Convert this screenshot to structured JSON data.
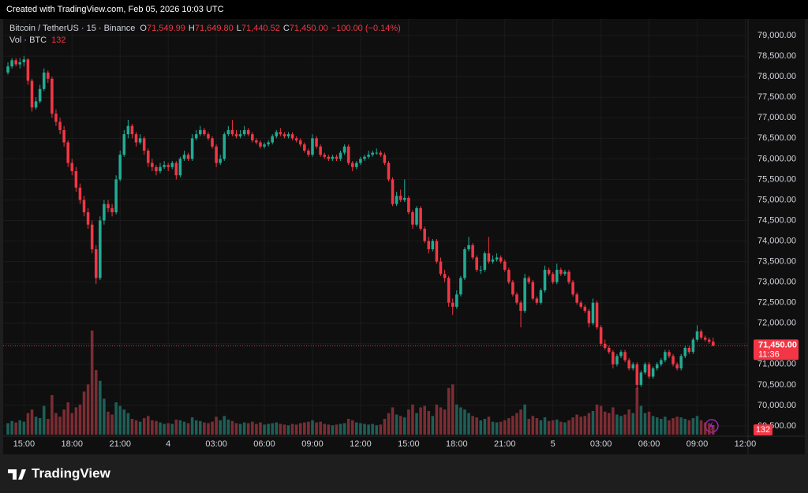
{
  "watermark": "Created with TradingView.com, Feb 05, 2026 10:03 UTC",
  "footer_brand": "TradingView",
  "chart_data": {
    "type": "candlestick",
    "legend": {
      "symbol": "Bitcoin / TetherUS · 15 · Binance",
      "fields": [
        {
          "key": "O",
          "label": "71,549.99"
        },
        {
          "key": "H",
          "label": "71,649.80"
        },
        {
          "key": "L",
          "label": "71,440.52"
        },
        {
          "key": "C",
          "label": "71,450.00"
        }
      ],
      "change": "−100.00 (−0.14%)",
      "volume_title": "Vol · BTC"
    },
    "up_color": "#22ab94",
    "down_color": "#f23645",
    "up_volume_color": "#1d5f57",
    "down_volume_color": "#7c2c33",
    "last_price_label": "71,450.00",
    "countdown": "11:36",
    "grid": true,
    "xlim": [
      -0.4,
      184.7
    ],
    "ylim": [
      69250,
      79290
    ],
    "volume_ylim": [
      0,
      6000
    ],
    "xticks": [
      {
        "value": 4,
        "label": "15:00"
      },
      {
        "value": 16,
        "label": "18:00"
      },
      {
        "value": 28,
        "label": "21:00"
      },
      {
        "value": 40,
        "label": "4"
      },
      {
        "value": 52,
        "label": "03:00"
      },
      {
        "value": 64,
        "label": "06:00"
      },
      {
        "value": 76,
        "label": "09:00"
      },
      {
        "value": 88,
        "label": "12:00"
      },
      {
        "value": 100,
        "label": "15:00"
      },
      {
        "value": 112,
        "label": "18:00"
      },
      {
        "value": 124,
        "label": "21:00"
      },
      {
        "value": 136,
        "label": "5"
      },
      {
        "value": 148,
        "label": "03:00"
      },
      {
        "value": 160,
        "label": "06:00"
      },
      {
        "value": 172,
        "label": "09:00"
      },
      {
        "value": 184,
        "label": "12:00"
      }
    ],
    "yticks": [
      {
        "value": 69500,
        "label": "69,500.00"
      },
      {
        "value": 70000,
        "label": "70,000.00"
      },
      {
        "value": 70500,
        "label": "70,500.00"
      },
      {
        "value": 71000,
        "label": "71,000.00"
      },
      {
        "value": 71500,
        "label": "71,500.00"
      },
      {
        "value": 72000,
        "label": "72,000.00"
      },
      {
        "value": 72500,
        "label": "72,500.00"
      },
      {
        "value": 73000,
        "label": "73,000.00"
      },
      {
        "value": 73500,
        "label": "73,500.00"
      },
      {
        "value": 74000,
        "label": "74,000.00"
      },
      {
        "value": 74500,
        "label": "74,500.00"
      },
      {
        "value": 75000,
        "label": "75,000.00"
      },
      {
        "value": 75500,
        "label": "75,500.00"
      },
      {
        "value": 76000,
        "label": "76,000.00"
      },
      {
        "value": 76500,
        "label": "76,500.00"
      },
      {
        "value": 77000,
        "label": "77,000.00"
      },
      {
        "value": 77500,
        "label": "77,500.00"
      },
      {
        "value": 78000,
        "label": "78,000.00"
      },
      {
        "value": 78500,
        "label": "78,500.00"
      },
      {
        "value": 79000,
        "label": "79,000.00"
      }
    ],
    "candle_fields": [
      "open",
      "high",
      "low",
      "close",
      "volume"
    ],
    "candles": [
      [
        78100,
        78350,
        78050,
        78250,
        160
      ],
      [
        78250,
        78450,
        78200,
        78400,
        190
      ],
      [
        78400,
        78450,
        78250,
        78300,
        170
      ],
      [
        78300,
        78450,
        78200,
        78350,
        200
      ],
      [
        78350,
        78500,
        78250,
        78420,
        180
      ],
      [
        78420,
        78450,
        77800,
        77900,
        300
      ],
      [
        77900,
        77950,
        77150,
        77250,
        350
      ],
      [
        77250,
        77500,
        77200,
        77400,
        250
      ],
      [
        77400,
        77800,
        77350,
        77700,
        230
      ],
      [
        77700,
        78200,
        77650,
        78100,
        400
      ],
      [
        78100,
        78150,
        77850,
        77950,
        220
      ],
      [
        77950,
        78000,
        77000,
        77100,
        550
      ],
      [
        77100,
        77200,
        76800,
        76900,
        300
      ],
      [
        76900,
        77000,
        76600,
        76700,
        250
      ],
      [
        76700,
        76800,
        76300,
        76400,
        350
      ],
      [
        76400,
        76450,
        75800,
        75900,
        450
      ],
      [
        75900,
        76000,
        75600,
        75700,
        300
      ],
      [
        75700,
        75800,
        75200,
        75300,
        380
      ],
      [
        75300,
        75400,
        74900,
        75000,
        420
      ],
      [
        75000,
        75100,
        74600,
        74700,
        600
      ],
      [
        74700,
        74800,
        74300,
        74400,
        700
      ],
      [
        74400,
        74500,
        73700,
        73800,
        1450
      ],
      [
        73800,
        73900,
        72950,
        73100,
        900
      ],
      [
        73100,
        74600,
        73050,
        74500,
        750
      ],
      [
        74500,
        75000,
        74400,
        74900,
        500
      ],
      [
        74900,
        75000,
        74700,
        74800,
        320
      ],
      [
        74800,
        74900,
        74600,
        74700,
        280
      ],
      [
        74700,
        75600,
        74650,
        75500,
        450
      ],
      [
        75500,
        76200,
        75450,
        76100,
        400
      ],
      [
        76100,
        76700,
        76050,
        76600,
        350
      ],
      [
        76600,
        76950,
        76500,
        76800,
        300
      ],
      [
        76800,
        76850,
        76500,
        76600,
        220
      ],
      [
        76600,
        76650,
        76300,
        76400,
        200
      ],
      [
        76400,
        76600,
        76350,
        76500,
        180
      ],
      [
        76500,
        76550,
        76100,
        76200,
        230
      ],
      [
        76200,
        76250,
        75800,
        75900,
        260
      ],
      [
        75900,
        76000,
        75700,
        75800,
        200
      ],
      [
        75800,
        75850,
        75600,
        75700,
        190
      ],
      [
        75700,
        75900,
        75650,
        75800,
        170
      ],
      [
        75800,
        75950,
        75750,
        75850,
        150
      ],
      [
        75850,
        75900,
        75700,
        75800,
        160
      ],
      [
        75800,
        75950,
        75750,
        75900,
        150
      ],
      [
        75900,
        75950,
        75500,
        75600,
        210
      ],
      [
        75600,
        76050,
        75550,
        76000,
        200
      ],
      [
        76000,
        76200,
        75950,
        76100,
        180
      ],
      [
        76100,
        76150,
        75950,
        76000,
        160
      ],
      [
        76000,
        76600,
        75950,
        76500,
        240
      ],
      [
        76500,
        76700,
        76450,
        76600,
        200
      ],
      [
        76600,
        76800,
        76550,
        76700,
        190
      ],
      [
        76700,
        76750,
        76550,
        76600,
        170
      ],
      [
        76600,
        76650,
        76450,
        76500,
        160
      ],
      [
        76500,
        76550,
        76250,
        76300,
        180
      ],
      [
        76300,
        76350,
        75800,
        75900,
        250
      ],
      [
        75900,
        76100,
        75850,
        76000,
        200
      ],
      [
        76000,
        76650,
        75950,
        76600,
        260
      ],
      [
        76600,
        76800,
        76550,
        76700,
        210
      ],
      [
        76700,
        76950,
        76550,
        76600,
        190
      ],
      [
        76600,
        76700,
        76500,
        76550,
        160
      ],
      [
        76550,
        76700,
        76500,
        76600,
        150
      ],
      [
        76600,
        76800,
        76550,
        76700,
        170
      ],
      [
        76700,
        76750,
        76550,
        76600,
        160
      ],
      [
        76600,
        76650,
        76400,
        76450,
        180
      ],
      [
        76450,
        76500,
        76350,
        76400,
        150
      ],
      [
        76400,
        76450,
        76250,
        76300,
        170
      ],
      [
        76300,
        76400,
        76250,
        76350,
        140
      ],
      [
        76350,
        76450,
        76300,
        76400,
        150
      ],
      [
        76400,
        76600,
        76350,
        76550,
        160
      ],
      [
        76550,
        76700,
        76500,
        76650,
        170
      ],
      [
        76650,
        76750,
        76550,
        76600,
        150
      ],
      [
        76600,
        76650,
        76500,
        76550,
        140
      ],
      [
        76550,
        76650,
        76500,
        76600,
        130
      ],
      [
        76600,
        76650,
        76450,
        76500,
        150
      ],
      [
        76500,
        76550,
        76400,
        76450,
        140
      ],
      [
        76450,
        76500,
        76300,
        76350,
        160
      ],
      [
        76350,
        76400,
        76150,
        76200,
        170
      ],
      [
        76200,
        76250,
        76050,
        76100,
        180
      ],
      [
        76100,
        76600,
        76050,
        76500,
        200
      ],
      [
        76500,
        76550,
        76250,
        76300,
        170
      ],
      [
        76300,
        76350,
        76050,
        76100,
        180
      ],
      [
        76100,
        76150,
        76000,
        76050,
        150
      ],
      [
        76050,
        76100,
        75950,
        76000,
        140
      ],
      [
        76000,
        76100,
        75950,
        76050,
        130
      ],
      [
        76050,
        76100,
        75950,
        76000,
        140
      ],
      [
        76000,
        76200,
        75950,
        76150,
        150
      ],
      [
        76150,
        76350,
        76100,
        76300,
        160
      ],
      [
        76300,
        76350,
        75850,
        75900,
        220
      ],
      [
        75900,
        75950,
        75700,
        75800,
        200
      ],
      [
        75800,
        75950,
        75750,
        75900,
        170
      ],
      [
        75900,
        76050,
        75850,
        76000,
        160
      ],
      [
        76000,
        76100,
        75950,
        76050,
        150
      ],
      [
        76050,
        76200,
        76000,
        76100,
        140
      ],
      [
        76100,
        76200,
        76050,
        76150,
        150
      ],
      [
        76150,
        76250,
        76100,
        76150,
        130
      ],
      [
        76150,
        76200,
        76050,
        76100,
        140
      ],
      [
        76100,
        76150,
        75850,
        75900,
        220
      ],
      [
        75900,
        75950,
        75450,
        75500,
        300
      ],
      [
        75500,
        75550,
        74850,
        74900,
        380
      ],
      [
        74900,
        75200,
        74850,
        75100,
        280
      ],
      [
        75100,
        75250,
        74950,
        75000,
        260
      ],
      [
        75000,
        75500,
        74950,
        75050,
        240
      ],
      [
        75050,
        75100,
        74650,
        74700,
        350
      ],
      [
        74700,
        74750,
        74300,
        74400,
        420
      ],
      [
        74400,
        74850,
        74350,
        74800,
        300
      ],
      [
        74800,
        74850,
        74250,
        74300,
        380
      ],
      [
        74300,
        74350,
        73950,
        74000,
        400
      ],
      [
        74000,
        74100,
        73700,
        73800,
        330
      ],
      [
        73800,
        74050,
        73750,
        74000,
        260
      ],
      [
        74000,
        74050,
        73450,
        73500,
        420
      ],
      [
        73500,
        73600,
        73150,
        73200,
        380
      ],
      [
        73200,
        73300,
        73000,
        73100,
        350
      ],
      [
        73100,
        73150,
        72400,
        72500,
        650
      ],
      [
        72500,
        72600,
        72200,
        72400,
        700
      ],
      [
        72400,
        72800,
        72350,
        72700,
        420
      ],
      [
        72700,
        73150,
        72650,
        73100,
        380
      ],
      [
        73100,
        73850,
        73050,
        73800,
        350
      ],
      [
        73800,
        74100,
        73750,
        73900,
        300
      ],
      [
        73900,
        73950,
        73550,
        73600,
        260
      ],
      [
        73600,
        73650,
        73250,
        73300,
        240
      ],
      [
        73300,
        73400,
        73200,
        73300,
        200
      ],
      [
        73300,
        73750,
        73250,
        73700,
        220
      ],
      [
        73700,
        74100,
        73450,
        73500,
        250
      ],
      [
        73500,
        73650,
        73450,
        73550,
        180
      ],
      [
        73550,
        73700,
        73500,
        73600,
        170
      ],
      [
        73600,
        73650,
        73450,
        73500,
        180
      ],
      [
        73500,
        73550,
        73250,
        73300,
        200
      ],
      [
        73300,
        73350,
        72950,
        73000,
        230
      ],
      [
        73000,
        73050,
        72650,
        72700,
        260
      ],
      [
        72700,
        72750,
        72450,
        72500,
        300
      ],
      [
        72500,
        72550,
        71900,
        72300,
        350
      ],
      [
        72300,
        73200,
        72250,
        73100,
        420
      ],
      [
        73100,
        73150,
        72950,
        73000,
        220
      ],
      [
        73000,
        73050,
        72550,
        72600,
        260
      ],
      [
        72600,
        72650,
        72450,
        72500,
        230
      ],
      [
        72500,
        72850,
        72450,
        72800,
        200
      ],
      [
        72800,
        73400,
        72750,
        73300,
        240
      ],
      [
        73300,
        73350,
        73150,
        73200,
        190
      ],
      [
        73200,
        73250,
        72950,
        73000,
        200
      ],
      [
        73000,
        73450,
        72950,
        73300,
        210
      ],
      [
        73300,
        73350,
        73150,
        73200,
        180
      ],
      [
        73200,
        73300,
        73150,
        73250,
        170
      ],
      [
        73250,
        73300,
        72950,
        73000,
        200
      ],
      [
        73000,
        73050,
        72650,
        72700,
        240
      ],
      [
        72700,
        72750,
        72450,
        72500,
        280
      ],
      [
        72500,
        72550,
        72350,
        72400,
        250
      ],
      [
        72400,
        72450,
        72250,
        72300,
        260
      ],
      [
        72300,
        72350,
        71900,
        72000,
        300
      ],
      [
        72000,
        72600,
        71950,
        72500,
        330
      ],
      [
        72500,
        72550,
        71850,
        71900,
        420
      ],
      [
        71900,
        71950,
        71450,
        71500,
        400
      ],
      [
        71500,
        71600,
        71350,
        71400,
        320
      ],
      [
        71400,
        71450,
        71250,
        71300,
        300
      ],
      [
        71300,
        71350,
        70900,
        71000,
        380
      ],
      [
        71000,
        71250,
        70950,
        71200,
        280
      ],
      [
        71200,
        71350,
        71150,
        71300,
        260
      ],
      [
        71300,
        71350,
        71050,
        71100,
        280
      ],
      [
        71100,
        71150,
        70850,
        70900,
        350
      ],
      [
        70900,
        71050,
        70850,
        71000,
        300
      ],
      [
        71000,
        71050,
        70400,
        70500,
        650
      ],
      [
        70500,
        70850,
        70450,
        70800,
        400
      ],
      [
        70800,
        71050,
        70750,
        71000,
        300
      ],
      [
        71000,
        71050,
        70650,
        70700,
        320
      ],
      [
        70700,
        70950,
        70650,
        70900,
        260
      ],
      [
        70900,
        71050,
        70850,
        71000,
        240
      ],
      [
        71000,
        71150,
        70950,
        71100,
        220
      ],
      [
        71100,
        71350,
        71050,
        71300,
        250
      ],
      [
        71300,
        71350,
        71150,
        71200,
        200
      ],
      [
        71200,
        71250,
        70950,
        71000,
        230
      ],
      [
        71000,
        71050,
        70850,
        70900,
        250
      ],
      [
        70900,
        71250,
        70850,
        71200,
        240
      ],
      [
        71200,
        71450,
        71150,
        71400,
        220
      ],
      [
        71400,
        71450,
        71250,
        71300,
        200
      ],
      [
        71300,
        71650,
        71250,
        71600,
        230
      ],
      [
        71600,
        71950,
        71550,
        71800,
        260
      ],
      [
        71800,
        71850,
        71600,
        71650,
        200
      ],
      [
        71650,
        71700,
        71550,
        71600,
        170
      ],
      [
        71600,
        71650,
        71500,
        71549.99,
        160
      ],
      [
        71549.99,
        71649.8,
        71440.52,
        71450,
        132
      ]
    ]
  }
}
